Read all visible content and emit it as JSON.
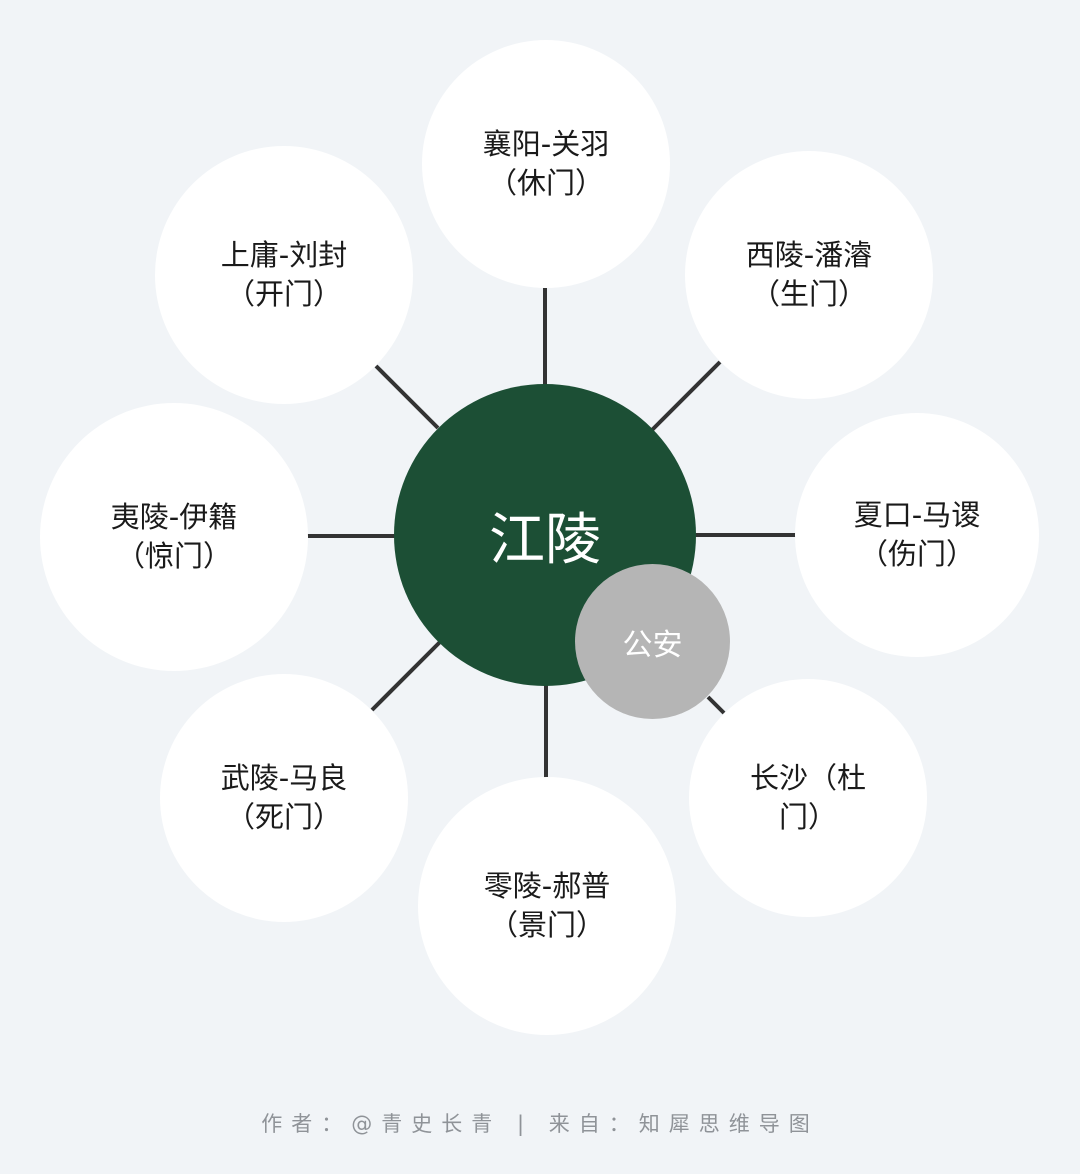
{
  "center": {
    "label": "江陵",
    "sub_label": "公安"
  },
  "nodes": [
    {
      "line1": "襄阳-关羽",
      "line2": "（休门）"
    },
    {
      "line1": "西陵-潘濬",
      "line2": "（生门）"
    },
    {
      "line1": "夏口-马谡",
      "line2": "（伤门）"
    },
    {
      "line1": "长沙（杜",
      "line2": "门）"
    },
    {
      "line1": "零陵-郝普",
      "line2": "（景门）"
    },
    {
      "line1": "武陵-马良",
      "line2": "（死门）"
    },
    {
      "line1": "夷陵-伊籍",
      "line2": "（惊门）"
    },
    {
      "line1": "上庸-刘封",
      "line2": "（开门）"
    }
  ],
  "footer": "作者：@青史长青 | 来自：知犀思维导图",
  "colors": {
    "background": "#f1f4f7",
    "center": "#1c4f35",
    "sub": "#b5b5b5",
    "node": "#ffffff",
    "connector": "#333333"
  }
}
